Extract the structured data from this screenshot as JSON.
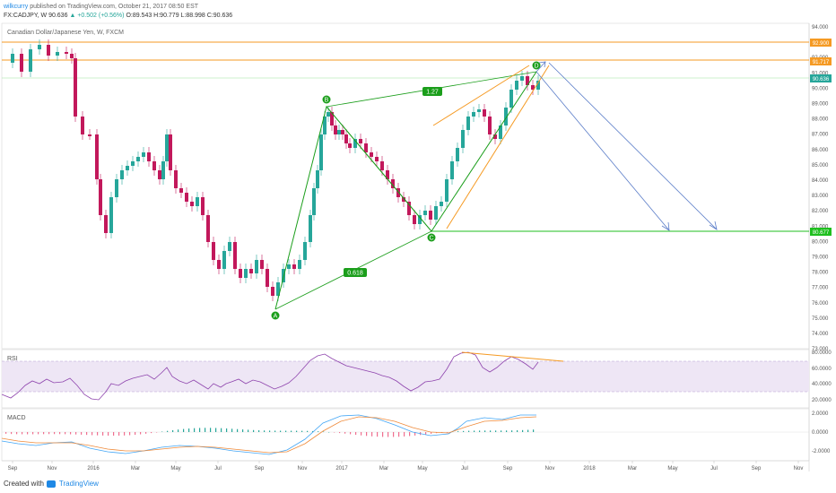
{
  "header": {
    "author": "wilkcurry",
    "published_text": "published on TradingView.com, October 21, 2017 08:50 EST",
    "symbol": "FX:CADJPY, W",
    "price": "90.636",
    "change": "+0.502 (+0.56%)",
    "ohlc": "O:89.543 H:90.779 L:88.998 C:90.636"
  },
  "main": {
    "title": "Canadian Dollar/Japanese Yen, W, FXCM",
    "price_axis": [
      "94.000",
      "93.000",
      "92.000",
      "91.000",
      "90.000",
      "89.000",
      "88.000",
      "87.000",
      "86.000",
      "85.000",
      "84.000",
      "83.000",
      "82.000",
      "81.000",
      "80.000",
      "79.000",
      "78.000",
      "77.000",
      "76.000",
      "75.000",
      "74.000",
      "73.000"
    ],
    "tags": {
      "top_orange": "92.900",
      "mid_orange": "91.717",
      "green_level": "90.636",
      "bottom_green": "80.677"
    },
    "pattern": {
      "A": "A",
      "B": "B",
      "C": "C",
      "D": "D",
      "ratio_bc": "1.27",
      "ratio_ab": "0.618"
    }
  },
  "rsi": {
    "title": "RSI",
    "axis": [
      "80.0000",
      "60.0000",
      "40.0000",
      "20.0000"
    ]
  },
  "macd": {
    "title": "MACD",
    "axis": [
      "2.0000",
      "0.0000",
      "-2.0000"
    ]
  },
  "time_axis": [
    "Sep",
    "Nov",
    "2016",
    "Mar",
    "May",
    "Jul",
    "Sep",
    "Nov",
    "2017",
    "Mar",
    "May",
    "Jul",
    "Sep",
    "Nov",
    "2018",
    "Mar",
    "May",
    "Jul",
    "Sep",
    "Nov"
  ],
  "footer": {
    "created_with": "Created with",
    "brand": "TradingView"
  },
  "colors": {
    "up": "#26a69a",
    "down": "#c2185b",
    "orange": "#f59a23",
    "green_line": "#1fbf1f",
    "pattern_green": "#1b9e1b",
    "blue_arrow": "#5b7dc8",
    "rsi_line": "#8e44ad",
    "rsi_band": "#eee6f5",
    "macd_blue": "#42a5f5",
    "macd_orange": "#ef8a3a"
  }
}
